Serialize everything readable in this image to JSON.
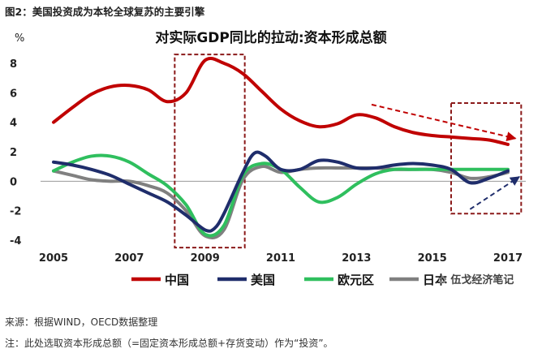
{
  "figure_label": "图2：美国投资成为本轮全球复苏的主要引擎",
  "source_note": "来源：根据WIND，OECD数据整理",
  "footnote": "注：此处选取资本形成总额（=固定资本形成总额+存货变动）作为“投资”。",
  "watermark": "伍戈经济笔记",
  "chart_data": {
    "type": "line",
    "title": "对实际GDP同比的拉动:资本形成总额",
    "ylabel": "%",
    "xlabel": "",
    "ylim": [
      -4,
      8
    ],
    "yticks": [
      -4,
      -2,
      0,
      2,
      4,
      6,
      8
    ],
    "xlim": [
      2005,
      2017.3
    ],
    "xticks": [
      2005,
      2007,
      2009,
      2011,
      2013,
      2015,
      2017
    ],
    "legend_position": "bottom",
    "series": [
      {
        "name": "中国",
        "color": "#c00000",
        "x": [
          2005,
          2005.5,
          2006,
          2006.5,
          2007,
          2007.5,
          2008,
          2008.5,
          2009,
          2009.5,
          2010,
          2010.5,
          2011,
          2011.5,
          2012,
          2012.5,
          2013,
          2013.5,
          2014,
          2014.5,
          2015,
          2015.5,
          2016,
          2016.5,
          2017
        ],
        "y": [
          4.0,
          5.0,
          5.9,
          6.4,
          6.5,
          6.2,
          5.4,
          6.0,
          8.2,
          8.0,
          7.3,
          6.1,
          4.9,
          4.1,
          3.7,
          3.9,
          4.5,
          4.3,
          3.7,
          3.3,
          3.1,
          3.0,
          2.9,
          2.8,
          2.5
        ]
      },
      {
        "name": "美国",
        "color": "#1f2d6b",
        "x": [
          2005,
          2005.5,
          2006,
          2006.5,
          2007,
          2007.5,
          2008,
          2008.5,
          2009,
          2009.25,
          2009.5,
          2010,
          2010.3,
          2010.6,
          2011,
          2011.5,
          2012,
          2012.5,
          2013,
          2013.5,
          2014,
          2014.5,
          2015,
          2015.5,
          2016,
          2016.5,
          2017
        ],
        "y": [
          1.3,
          1.1,
          0.8,
          0.4,
          -0.2,
          -0.8,
          -1.4,
          -2.3,
          -3.3,
          -3.2,
          -2.2,
          0.6,
          1.9,
          1.7,
          0.8,
          0.8,
          1.4,
          1.3,
          0.9,
          0.9,
          1.1,
          1.2,
          1.1,
          0.8,
          -0.1,
          0.2,
          0.7
        ]
      },
      {
        "name": "欧元区",
        "color": "#2fbf5e",
        "x": [
          2005,
          2005.5,
          2006,
          2006.5,
          2007,
          2007.5,
          2008,
          2008.5,
          2009,
          2009.5,
          2010,
          2010.5,
          2011,
          2011.5,
          2012,
          2012.5,
          2013,
          2013.5,
          2014,
          2014.5,
          2015,
          2015.5,
          2016,
          2016.5,
          2017
        ],
        "y": [
          0.7,
          1.3,
          1.7,
          1.7,
          1.3,
          0.5,
          -0.3,
          -1.6,
          -3.6,
          -3.0,
          0.4,
          1.2,
          0.8,
          -0.4,
          -1.4,
          -1.1,
          -0.2,
          0.5,
          0.8,
          0.8,
          0.8,
          0.8,
          0.8,
          0.8,
          0.8
        ]
      },
      {
        "name": "日本",
        "color": "#808080",
        "x": [
          2005,
          2005.5,
          2006,
          2006.5,
          2007,
          2007.5,
          2008,
          2008.5,
          2009,
          2009.5,
          2010,
          2010.5,
          2011,
          2011.5,
          2012,
          2012.5,
          2013,
          2013.5,
          2014,
          2014.5,
          2015,
          2015.5,
          2016,
          2016.5,
          2017
        ],
        "y": [
          0.7,
          0.4,
          0.1,
          0.0,
          0.0,
          -0.3,
          -0.8,
          -2.0,
          -3.7,
          -3.3,
          0.1,
          1.0,
          0.6,
          0.8,
          0.9,
          0.9,
          0.9,
          0.9,
          0.8,
          0.8,
          0.8,
          0.6,
          0.2,
          0.3,
          0.6
        ]
      }
    ]
  },
  "annotations": {
    "box_color": "#8b1a1a",
    "arrow_red_color": "#c00000",
    "arrow_blue_color": "#1f2d6b"
  }
}
